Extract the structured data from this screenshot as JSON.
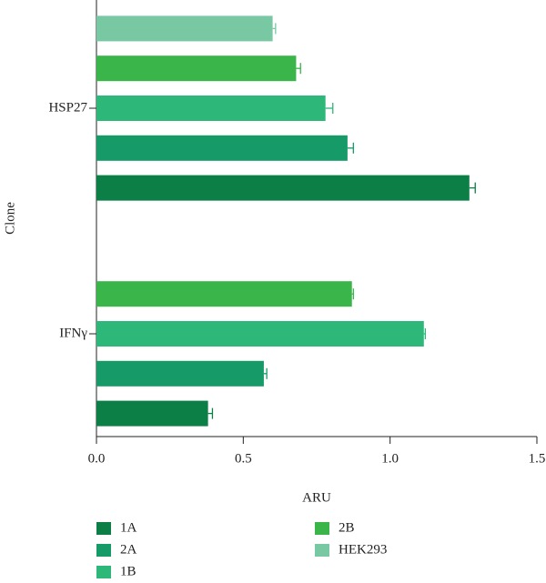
{
  "chart_data": {
    "type": "bar",
    "orientation": "horizontal",
    "categories": [
      "HSP27",
      "IFNγ"
    ],
    "xlabel": "ARU",
    "ylabel": "Clone",
    "xlim": [
      0,
      1.5
    ],
    "xticks": [
      {
        "value": 0,
        "label": "0.0"
      },
      {
        "value": 0.5,
        "label": "0.5"
      },
      {
        "value": 1,
        "label": "1.0"
      },
      {
        "value": 1.5,
        "label": "1.5"
      }
    ],
    "series": [
      {
        "name": "1A",
        "color": "#0b7f45",
        "values": [
          1.27,
          0.38
        ],
        "errors": [
          0.02,
          0.015
        ]
      },
      {
        "name": "2A",
        "color": "#169a68",
        "values": [
          0.855,
          0.57
        ],
        "errors": [
          0.02,
          0.01
        ]
      },
      {
        "name": "1B",
        "color": "#2db87a",
        "values": [
          0.78,
          1.115
        ],
        "errors": [
          0.025,
          0.005
        ]
      },
      {
        "name": "2B",
        "color": "#39b54a",
        "values": [
          0.68,
          0.87
        ],
        "errors": [
          0.015,
          0.005
        ]
      },
      {
        "name": "HEK293",
        "color": "#78c8a4",
        "values": [
          0.6,
          null
        ],
        "errors": [
          0.01,
          null
        ]
      }
    ]
  }
}
